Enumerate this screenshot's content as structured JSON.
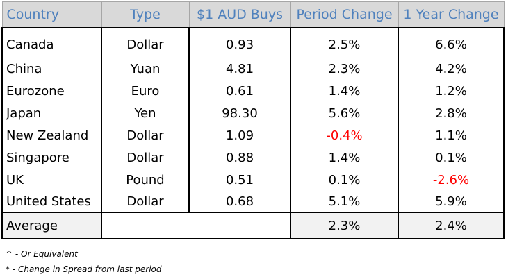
{
  "table": {
    "headers": [
      "Country",
      "Type",
      "$1 AUD Buys",
      "Period Change",
      "1 Year Change"
    ],
    "rows": [
      {
        "country": "Canada",
        "type": "Dollar",
        "buys": "0.93",
        "period": "2.5%",
        "year": "6.6%"
      },
      {
        "country": "China",
        "type": "Yuan",
        "buys": "4.81",
        "period": "2.3%",
        "year": "4.2%"
      },
      {
        "country": "Eurozone",
        "type": "Euro",
        "buys": "0.61",
        "period": "1.4%",
        "year": "1.2%"
      },
      {
        "country": "Japan",
        "type": "Yen",
        "buys": "98.30",
        "period": "5.6%",
        "year": "2.8%"
      },
      {
        "country": "New Zealand",
        "type": "Dollar",
        "buys": "1.09",
        "period": "-0.4%",
        "year": "1.1%"
      },
      {
        "country": "Singapore",
        "type": "Dollar",
        "buys": "0.88",
        "period": "1.4%",
        "year": "0.1%"
      },
      {
        "country": "UK",
        "type": "Pound",
        "buys": "0.51",
        "period": "0.1%",
        "year": "-2.6%"
      },
      {
        "country": "United States",
        "type": "Dollar",
        "buys": "0.68",
        "period": "5.1%",
        "year": "5.9%"
      }
    ],
    "average": {
      "label": "Average",
      "type": "",
      "buys": "",
      "period": "2.3%",
      "year": "2.4%"
    }
  },
  "notes": [
    "^ - Or Equivalent",
    "* - Change in Spread from last period"
  ],
  "colors": {
    "header_text": "#4f81bd",
    "header_bg": "#d9d9d9",
    "negative": "#ff0000",
    "average_bg": "#f2f2f2"
  }
}
